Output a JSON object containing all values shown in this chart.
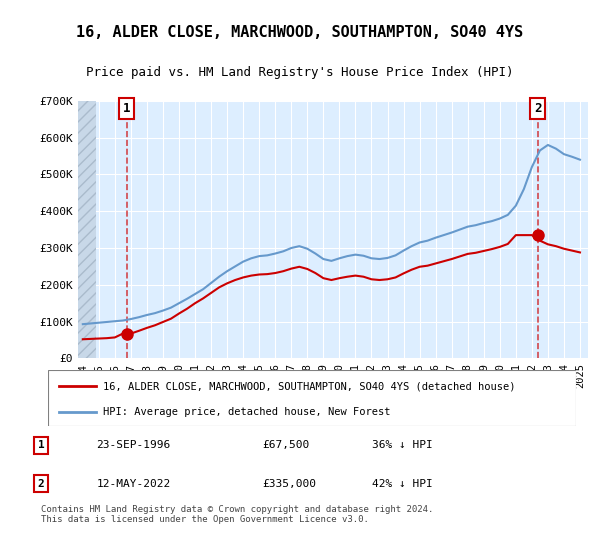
{
  "title": "16, ALDER CLOSE, MARCHWOOD, SOUTHAMPTON, SO40 4YS",
  "subtitle": "Price paid vs. HM Land Registry's House Price Index (HPI)",
  "legend_line1": "16, ALDER CLOSE, MARCHWOOD, SOUTHAMPTON, SO40 4YS (detached house)",
  "legend_line2": "HPI: Average price, detached house, New Forest",
  "annotation1_label": "1",
  "annotation1_date": "23-SEP-1996",
  "annotation1_price": "£67,500",
  "annotation1_hpi": "36% ↓ HPI",
  "annotation2_label": "2",
  "annotation2_date": "12-MAY-2022",
  "annotation2_price": "£335,000",
  "annotation2_hpi": "42% ↓ HPI",
  "footnote": "Contains HM Land Registry data © Crown copyright and database right 2024.\nThis data is licensed under the Open Government Licence v3.0.",
  "red_line_color": "#cc0000",
  "blue_line_color": "#6699cc",
  "background_plot": "#ddeeff",
  "background_hatch": "#c8d8e8",
  "ylim": [
    0,
    700000
  ],
  "yticks": [
    0,
    100000,
    200000,
    300000,
    400000,
    500000,
    600000,
    700000
  ],
  "ytick_labels": [
    "£0",
    "£100K",
    "£200K",
    "£300K",
    "£400K",
    "£500K",
    "£600K",
    "£700K"
  ],
  "purchase1_x": 1996.73,
  "purchase1_y": 67500,
  "purchase2_x": 2022.36,
  "purchase2_y": 335000,
  "hpi_years": [
    1994,
    1994.5,
    1995,
    1995.5,
    1996,
    1996.5,
    1997,
    1997.5,
    1998,
    1998.5,
    1999,
    1999.5,
    2000,
    2000.5,
    2001,
    2001.5,
    2002,
    2002.5,
    2003,
    2003.5,
    2004,
    2004.5,
    2005,
    2005.5,
    2006,
    2006.5,
    2007,
    2007.5,
    2008,
    2008.5,
    2009,
    2009.5,
    2010,
    2010.5,
    2011,
    2011.5,
    2012,
    2012.5,
    2013,
    2013.5,
    2014,
    2014.5,
    2015,
    2015.5,
    2016,
    2016.5,
    2017,
    2017.5,
    2018,
    2018.5,
    2019,
    2019.5,
    2020,
    2020.5,
    2021,
    2021.5,
    2022,
    2022.5,
    2023,
    2023.5,
    2024,
    2024.5,
    2025
  ],
  "hpi_values": [
    93000,
    95000,
    97000,
    99000,
    101000,
    103000,
    107000,
    112000,
    118000,
    123000,
    130000,
    138000,
    150000,
    162000,
    175000,
    188000,
    205000,
    222000,
    237000,
    250000,
    263000,
    272000,
    278000,
    280000,
    285000,
    291000,
    300000,
    305000,
    298000,
    285000,
    270000,
    265000,
    272000,
    278000,
    282000,
    279000,
    272000,
    270000,
    273000,
    280000,
    293000,
    305000,
    315000,
    320000,
    328000,
    335000,
    342000,
    350000,
    358000,
    362000,
    368000,
    373000,
    380000,
    390000,
    415000,
    460000,
    520000,
    565000,
    580000,
    570000,
    555000,
    548000,
    540000
  ],
  "red_years": [
    1994,
    1994.5,
    1995,
    1995.5,
    1996,
    1996.5,
    1997,
    1997.5,
    1998,
    1998.5,
    1999,
    1999.5,
    2000,
    2000.5,
    2001,
    2001.5,
    2002,
    2002.5,
    2003,
    2003.5,
    2004,
    2004.5,
    2005,
    2005.5,
    2006,
    2006.5,
    2007,
    2007.5,
    2008,
    2008.5,
    2009,
    2009.5,
    2010,
    2010.5,
    2011,
    2011.5,
    2012,
    2012.5,
    2013,
    2013.5,
    2014,
    2014.5,
    2015,
    2015.5,
    2016,
    2016.5,
    2017,
    2017.5,
    2018,
    2018.5,
    2019,
    2019.5,
    2020,
    2020.5,
    2021,
    2021.5,
    2022,
    2022.5,
    2023,
    2023.5,
    2024,
    2024.5,
    2025
  ],
  "red_values": [
    52000,
    53000,
    54000,
    55000,
    57000,
    67500,
    67500,
    75000,
    83000,
    90000,
    99000,
    108000,
    122000,
    135000,
    150000,
    163000,
    178000,
    193000,
    204000,
    213000,
    220000,
    225000,
    228000,
    229000,
    232000,
    237000,
    244000,
    249000,
    243000,
    232000,
    218000,
    213000,
    218000,
    222000,
    225000,
    222000,
    215000,
    213000,
    215000,
    220000,
    231000,
    241000,
    249000,
    252000,
    258000,
    264000,
    270000,
    277000,
    284000,
    287000,
    292000,
    297000,
    303000,
    311000,
    335000,
    335000,
    335000,
    320000,
    310000,
    305000,
    298000,
    293000,
    288000
  ],
  "xtick_years": [
    1994,
    1995,
    1996,
    1997,
    1998,
    1999,
    2000,
    2001,
    2002,
    2003,
    2004,
    2005,
    2006,
    2007,
    2008,
    2009,
    2010,
    2011,
    2012,
    2013,
    2014,
    2015,
    2016,
    2017,
    2018,
    2019,
    2020,
    2021,
    2022,
    2023,
    2024,
    2025
  ]
}
